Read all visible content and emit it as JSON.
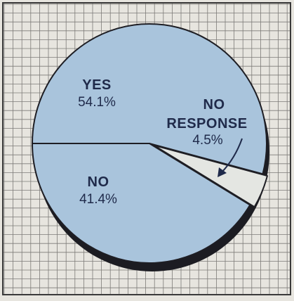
{
  "chart_data": {
    "type": "pie",
    "title": "",
    "slices": [
      {
        "label": "YES",
        "value": 54.1,
        "value_label": "54.1%",
        "color": "#a9c4dc"
      },
      {
        "label": "NO RESPONSE",
        "label_lines": [
          "NO",
          "RESPONSE"
        ],
        "value": 4.5,
        "value_label": "4.5%",
        "color": "#e4e6e2"
      },
      {
        "label": "NO",
        "value": 41.4,
        "value_label": "41.4%",
        "color": "#a9c4dc"
      }
    ],
    "legend": "none",
    "grid": true
  },
  "colors": {
    "background": "#e7e5df",
    "grid": "#7d7b78",
    "outline": "#1e1e24",
    "text": "#1f2a4a"
  }
}
